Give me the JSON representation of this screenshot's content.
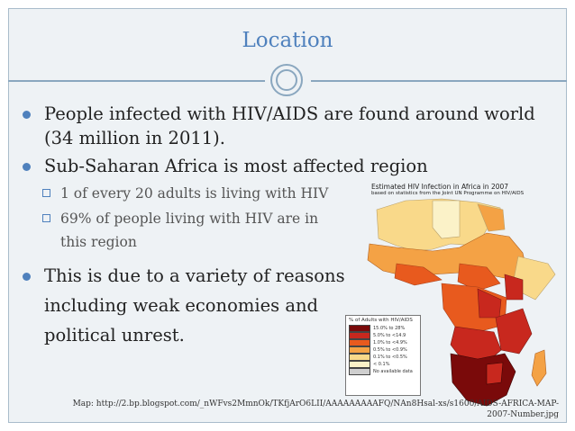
{
  "slide": {
    "title": "Location",
    "bullets": [
      "People infected with HIV/AIDS are found around world (34 million in 2011).",
      "Sub-Saharan Africa is most affected region"
    ],
    "sub_bullets": [
      "1 of every 20 adults is living with HIV",
      "69% of people living with HIV are in this region"
    ],
    "bullet3": "This is due to a variety of reasons including weak economies and political unrest.",
    "map_title": "Estimated HIV Infection in Africa in 2007",
    "map_subtitle": "based on statistics from the Joint UN Programme on HIV/AIDS",
    "legend": {
      "title": "% of Adults with HIV/AIDS",
      "items": [
        {
          "label": "15.0% to 28%",
          "color": "#7a0a0a"
        },
        {
          "label": "5.0% to <14.9",
          "color": "#c8281e"
        },
        {
          "label": "1.0% to <4.9%",
          "color": "#e85a1e"
        },
        {
          "label": "0.5% to <0.9%",
          "color": "#f4a245"
        },
        {
          "label": "0.1% to <0.5%",
          "color": "#f9d98a"
        },
        {
          "label": "< 0.1%",
          "color": "#fbf2c8"
        },
        {
          "label": "No available data",
          "color": "#cfcfcf"
        }
      ]
    },
    "caption": "Map: http://2.bp.blogspot.com/_nWFvs2MmnOk/TKfjArO6LII/AAAAAAAAAFQ/NAn8Hsal-xs/s1600/AIDS-AFRICA-MAP-2007-Number.jpg"
  },
  "colors": {
    "accent": "#4f81bd",
    "frame": "#eef2f5"
  }
}
